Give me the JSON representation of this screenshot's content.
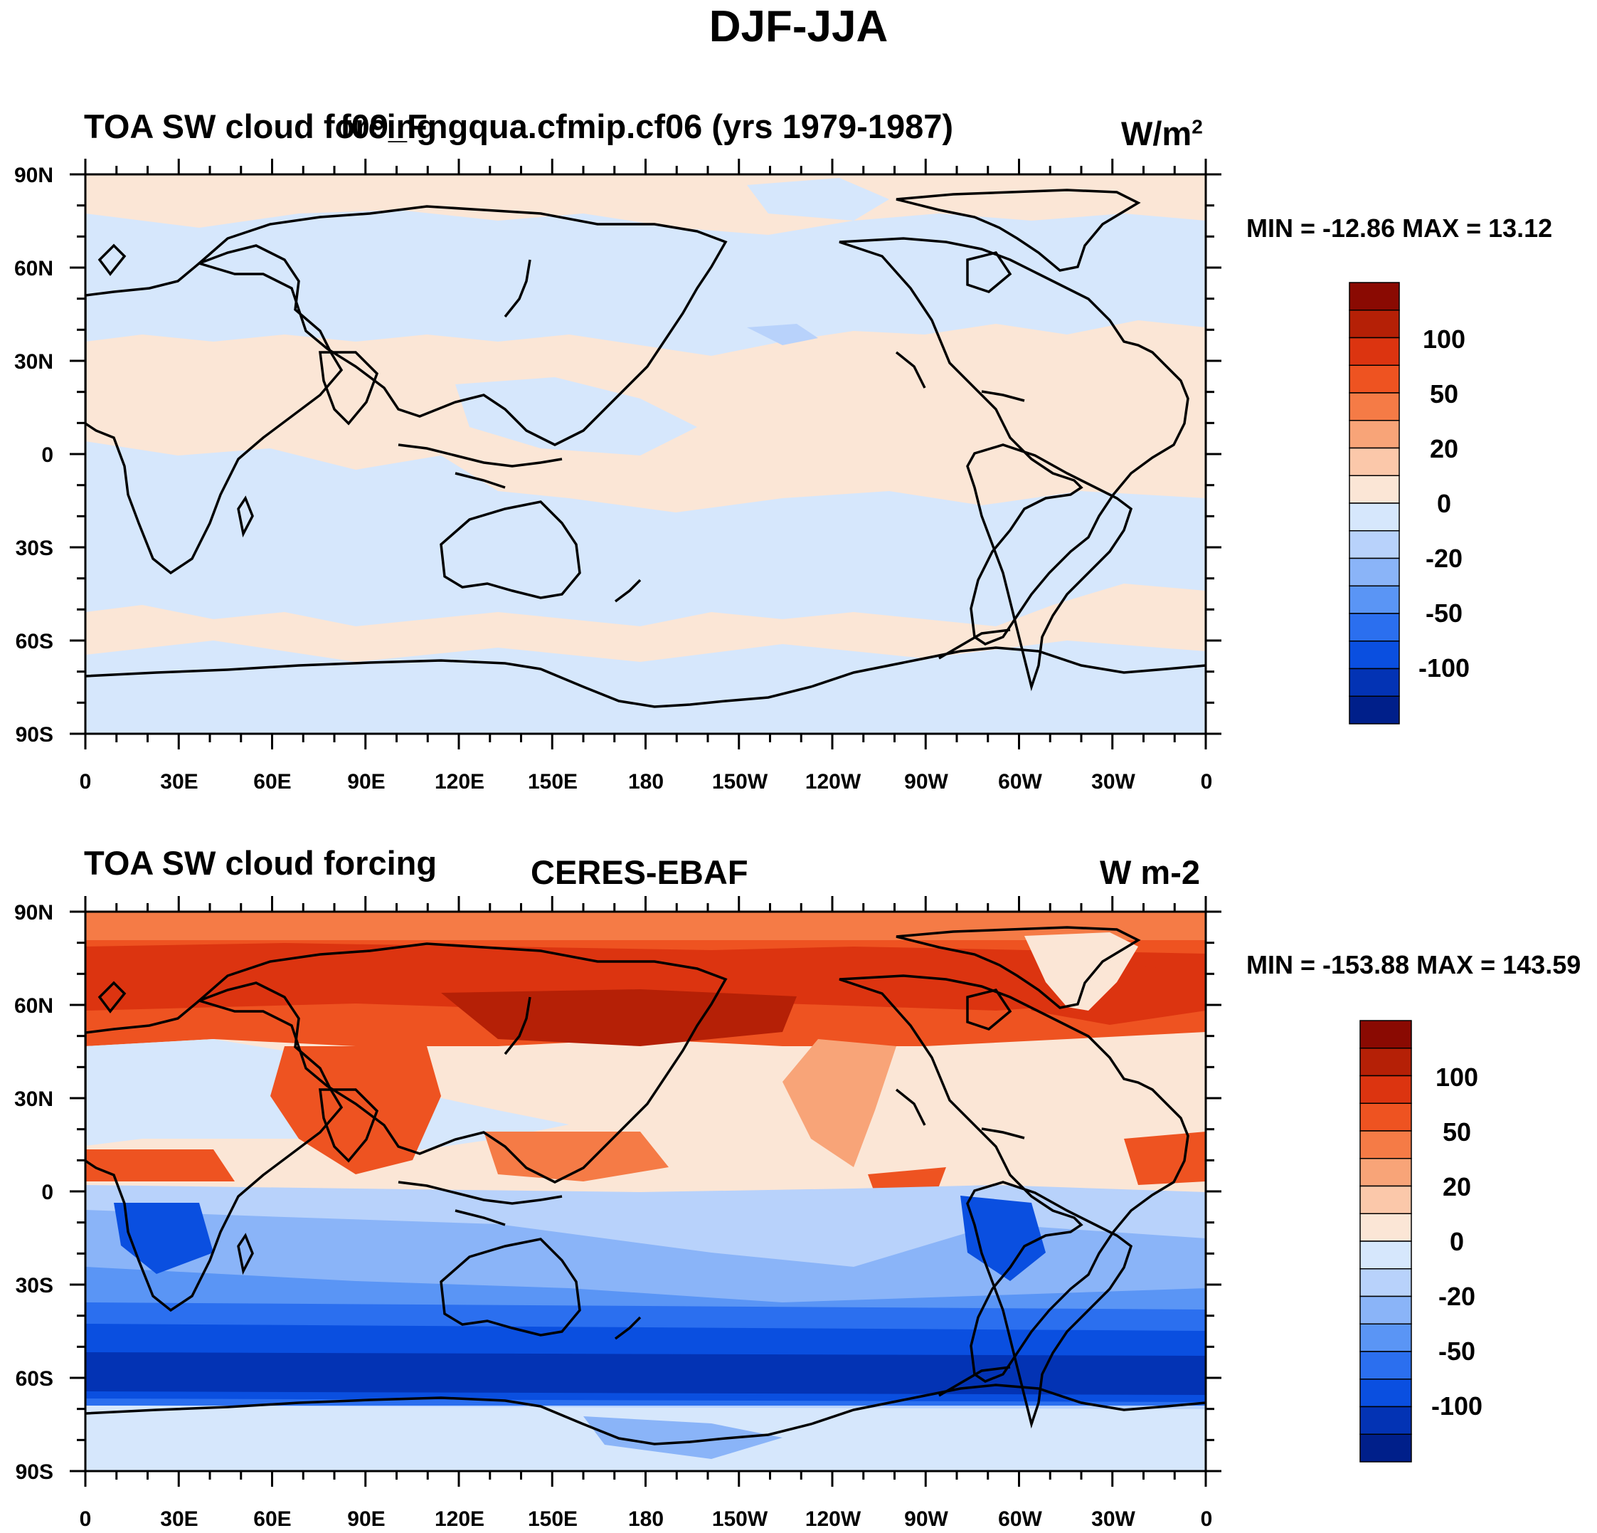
{
  "figure_title": "DJF-JJA",
  "colors": {
    "levels": [
      "#001f8a",
      "#0333b4",
      "#0a4fe0",
      "#2b6fef",
      "#5a95f5",
      "#8ab4f8",
      "#b8d2fb",
      "#d6e7fc",
      "#fbe6d6",
      "#fbc8aa",
      "#f8a478",
      "#f57b46",
      "#ee5321",
      "#dc3410",
      "#b52006",
      "#8a0a02"
    ],
    "coast": "#000000",
    "frame": "#000000"
  },
  "colorbar": {
    "labels": [
      "100",
      "50",
      "20",
      "0",
      "-20",
      "-50",
      "-100"
    ]
  },
  "panels": [
    {
      "left_title": "TOA SW cloud forcing",
      "center_title": "f09_Fngqua.cfmip.cf06 (yrs 1979-1987)",
      "right_title_base": "W/m",
      "right_title_sup": "2",
      "min_max": "MIN = -12.86 MAX =  13.12",
      "lat_labels": [
        "90N",
        "60N",
        "30N",
        "0",
        "30S",
        "60S",
        "90S"
      ],
      "lon_labels": [
        "0",
        "30E",
        "60E",
        "90E",
        "120E",
        "150E",
        "180",
        "150W",
        "120W",
        "90W",
        "60W",
        "30W",
        "0"
      ]
    },
    {
      "left_title": "TOA SW cloud forcing",
      "center_title": "CERES-EBAF",
      "right_title": "W m-2",
      "min_max": "MIN = -153.88 MAX = 143.59",
      "lat_labels": [
        "90N",
        "60N",
        "30N",
        "0",
        "30S",
        "60S",
        "90S"
      ],
      "lon_labels": [
        "0",
        "30E",
        "60E",
        "90E",
        "120E",
        "150E",
        "180",
        "150W",
        "120W",
        "90W",
        "60W",
        "30W",
        "0"
      ]
    }
  ],
  "chart_data": [
    {
      "type": "heatmap",
      "title": "TOA SW cloud forcing f09_Fngqua.cfmip.cf06 (yrs 1979-1987)",
      "units": "W/m2",
      "min": -12.86,
      "max": 13.12,
      "contour_levels": [
        -140,
        -120,
        -100,
        -80,
        -60,
        -50,
        -40,
        -20,
        0,
        20,
        40,
        50,
        60,
        80,
        100,
        120,
        140
      ],
      "xlim": [
        0,
        360
      ],
      "ylim": [
        -90,
        90
      ],
      "xticks": [
        "0",
        "30E",
        "60E",
        "90E",
        "120E",
        "150E",
        "180",
        "150W",
        "120W",
        "90W",
        "60W",
        "30W",
        "0"
      ],
      "yticks": [
        "90N",
        "60N",
        "30N",
        "0",
        "30S",
        "60S",
        "90S"
      ]
    },
    {
      "type": "heatmap",
      "title": "TOA SW cloud forcing CERES-EBAF",
      "units": "W m-2",
      "min": -153.88,
      "max": 143.59,
      "contour_levels": [
        -140,
        -120,
        -100,
        -80,
        -60,
        -50,
        -40,
        -20,
        0,
        20,
        40,
        50,
        60,
        80,
        100,
        120,
        140
      ],
      "xlim": [
        0,
        360
      ],
      "ylim": [
        -90,
        90
      ],
      "xticks": [
        "0",
        "30E",
        "60E",
        "90E",
        "120E",
        "150E",
        "180",
        "150W",
        "120W",
        "90W",
        "60W",
        "30W",
        "0"
      ],
      "yticks": [
        "90N",
        "60N",
        "30N",
        "0",
        "30S",
        "60S",
        "90S"
      ]
    }
  ]
}
